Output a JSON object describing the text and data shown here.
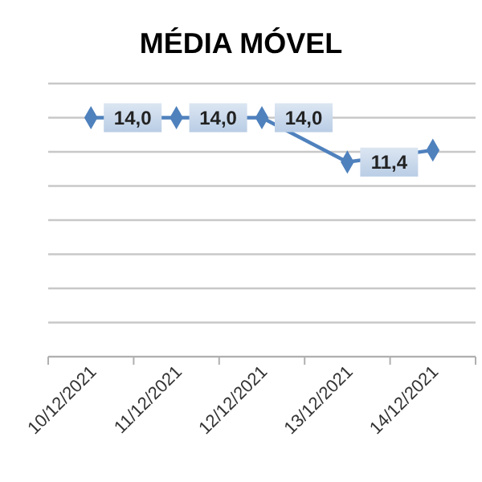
{
  "chart_data": {
    "type": "line",
    "title": "MÉDIA MÓVEL",
    "categories": [
      "10/12/2021",
      "11/12/2021",
      "12/12/2021",
      "13/12/2021",
      "14/12/2021"
    ],
    "series": [
      {
        "color": "#4f81bd",
        "values": [
          14.0,
          14.0,
          14.0,
          11.4,
          12.1
        ],
        "value_labels": [
          "14,0",
          "14,0",
          "14,0",
          "11,4",
          null
        ]
      }
    ],
    "ylim": [
      0,
      16
    ],
    "yticks": [
      {
        "value": 0,
        "label": null
      },
      {
        "value": 2,
        "label": null
      },
      {
        "value": 4,
        "label": null
      },
      {
        "value": 6,
        "label": null
      },
      {
        "value": 8,
        "label": null
      },
      {
        "value": 10,
        "label": null
      },
      {
        "value": 12,
        "label": null
      },
      {
        "value": 14,
        "label": null
      },
      {
        "value": 16,
        "label": null
      }
    ],
    "grid": "y",
    "marker": "diamond"
  }
}
